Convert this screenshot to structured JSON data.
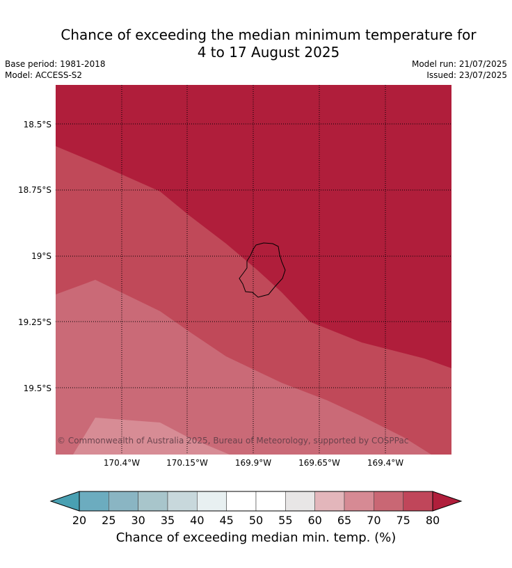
{
  "title": {
    "line1": "Chance of exceeding the median minimum temperature for",
    "line2": "4 to 17 August 2025"
  },
  "meta": {
    "base_period": "Base period: 1981-2018",
    "model": "Model: ACCESS-S2",
    "model_run": "Model run: 21/07/2025",
    "issued": "Issued: 23/07/2025"
  },
  "map": {
    "lat_ticks": [
      "18.5°S",
      "18.75°S",
      "19°S",
      "19.25°S",
      "19.5°S"
    ],
    "lon_ticks": [
      "170.4°W",
      "170.15°W",
      "169.9°W",
      "169.65°W",
      "169.4°W"
    ],
    "copyright": "© Commonwealth of Australia 2025, Bureau of Meteorology, supported by COSPPac",
    "band_colors": {
      "80_plus": "#b01e3b",
      "75_80": "#c04959",
      "70_75": "#ca6a77",
      "65_70": "#d78c95"
    },
    "island_outline": "#000000"
  },
  "colorbar": {
    "title": "Chance of exceeding median min. temp. (%)",
    "labels": [
      "20",
      "25",
      "30",
      "35",
      "40",
      "45",
      "50",
      "55",
      "60",
      "65",
      "70",
      "75",
      "80"
    ],
    "colors": [
      "#49a0b2",
      "#6cacbf",
      "#8ab5c3",
      "#a8c5cb",
      "#c8d8dc",
      "#e8f0f1",
      "#ffffff",
      "#ffffff",
      "#e8e6e6",
      "#e3b6bb",
      "#d68a94",
      "#c96774",
      "#c0465a",
      "#b01e3b"
    ]
  }
}
